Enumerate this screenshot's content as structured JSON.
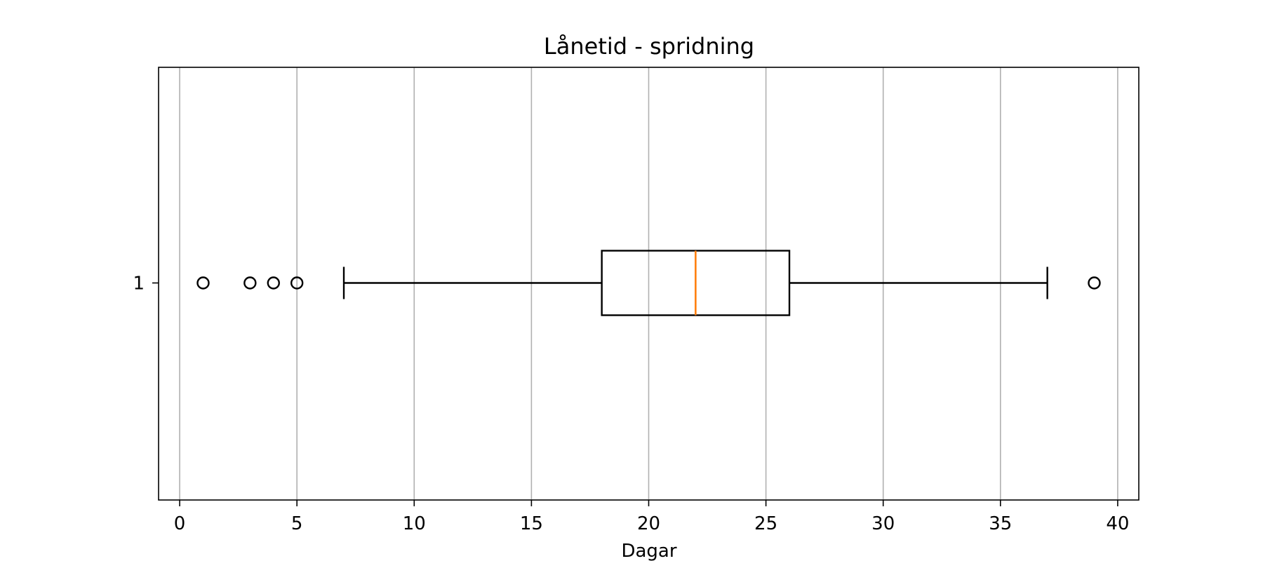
{
  "chart_data": {
    "type": "boxplot",
    "orientation": "horizontal",
    "title": "Lånetid - spridning",
    "xlabel": "Dagar",
    "ylabel": "",
    "xlim": [
      -0.9,
      40.9
    ],
    "xticks": [
      0,
      5,
      10,
      15,
      20,
      25,
      30,
      35,
      40
    ],
    "xtick_labels": [
      "0",
      "5",
      "10",
      "15",
      "20",
      "25",
      "30",
      "35",
      "40"
    ],
    "yticks": [
      1
    ],
    "ytick_labels": [
      "1"
    ],
    "grid": "vertical",
    "series": [
      {
        "position": 1,
        "whisker_low": 7,
        "q1": 18,
        "median": 22,
        "q3": 26,
        "whisker_high": 37,
        "outliers": [
          1,
          3,
          4,
          5,
          39
        ]
      }
    ],
    "colors": {
      "box": "#000000",
      "median": "#ff7f0e",
      "grid": "#b0b0b0",
      "axes": "#000000",
      "background": "#ffffff"
    }
  }
}
